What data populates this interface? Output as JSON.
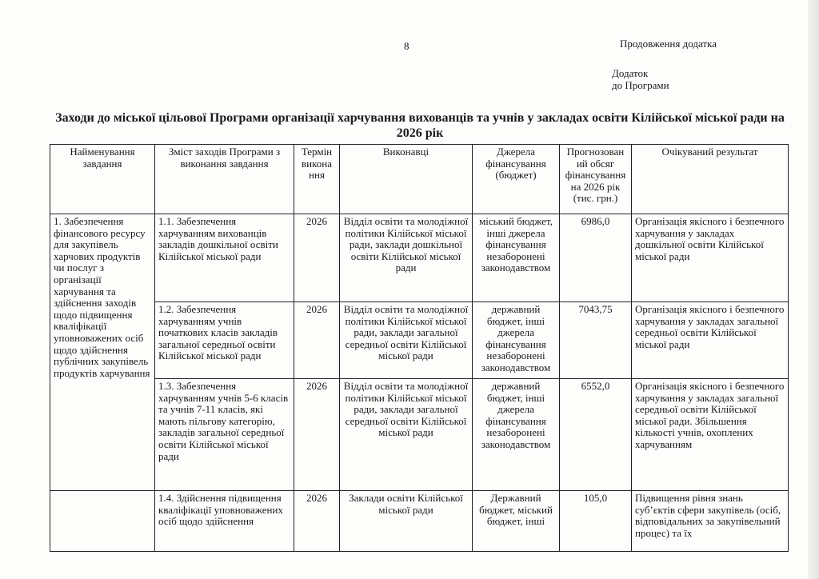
{
  "page_number": "8",
  "continuation": "Продовження додатка",
  "annex": [
    "Додаток",
    "до Програми"
  ],
  "title": "Заходи до міської цільової Програми організації харчування вихованців та учнів у закладах освіти Кілійської міської ради на 2026 рік",
  "headers": [
    "Найменування завдання",
    "Зміст заходів Програми з виконання завдання",
    "Термін викона ння",
    "Виконавці",
    "Джерела фінансування (бюджет)",
    "Прогнозован ий обсяг фінансування на 2026 рік (тис. грн.)",
    "Очікуваний результат"
  ],
  "task": "1. Забезпечення фінансового ресурсу для закупівель харчових продуктів чи послуг з організації харчування та здійснення заходів щодо підвищення кваліфікації уповноважених осіб щодо здійснення публічних закупівель продуктів харчування",
  "rows": [
    {
      "measure": "1.1. Забезпечення харчуванням вихованців закладів дошкільної освіти Кілійської міської ради",
      "term": "2026",
      "executors": "Відділ освіти та молодіжної політики Кілійської міської ради, заклади дошкільної освіти Кілійської міської ради",
      "sources": "міський бюджет, інші джерела фінансування незаборонені законодавством",
      "amount": "6986,0",
      "result": "Організація якісного і безпечного харчування у закладах дошкільної освіти Кілійської міської ради"
    },
    {
      "measure": "1.2. Забезпечення харчуванням учнів початкових класів закладів загальної середньої освіти Кілійської міської ради",
      "term": "2026",
      "executors": "Відділ освіти та молодіжної політики Кілійської міської ради, заклади загальної середньої освіти Кілійської міської ради",
      "sources": "державний бюджет, інші джерела фінансування незаборонені законодавством",
      "amount": "7043,75",
      "result": "Організація якісного і безпечного харчування у закладах загальної середньої освіти Кілійської міської ради"
    },
    {
      "measure": "1.3. Забезпечення харчуванням учнів 5-6 класів та учнів 7-11 класів, які мають пільгову категорію, закладів загальної середньої освіти Кілійської міської ради",
      "term": "2026",
      "executors": "Відділ освіти та молодіжної політики Кілійської міської ради, заклади загальної середньої освіти Кілійської міської ради",
      "sources": "державний бюджет, інші джерела фінансування незаборонені законодавством",
      "amount": "6552,0",
      "result": "Організація якісного і безпечного харчування у закладах загальної середньої освіти Кілійської міської ради. Збільшення кількості учнів, охоплених харчуванням"
    },
    {
      "measure": "1.4. Здійснення підвищення кваліфікації уповноважених осіб щодо здійснення",
      "term": "2026",
      "executors": "Заклади освіти Кілійської міської ради",
      "sources": "Державний бюджет, міський бюджет, інші",
      "amount": "105,0",
      "result": "Підвищення рівня знань суб’єктів сфери закупівель (осіб, відповідальних за закупівельний процес) та їх"
    }
  ]
}
